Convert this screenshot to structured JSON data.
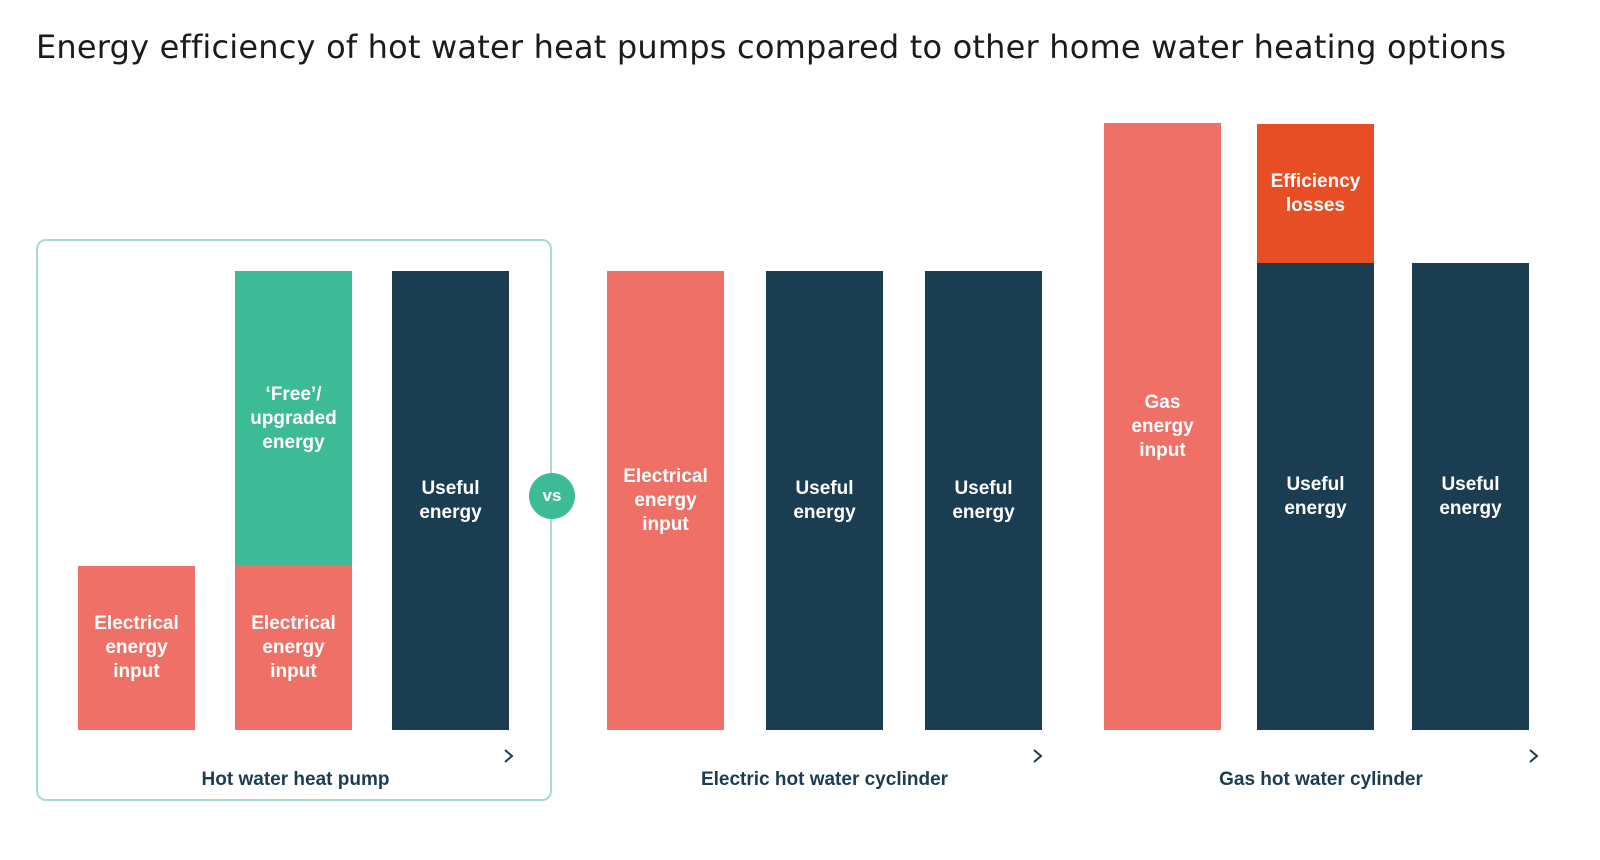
{
  "title": "Energy efficiency of hot water heat pumps compared to other home water heating options",
  "vs_label": "vs",
  "colors": {
    "electrical": "#ef7066",
    "free": "#3dba96",
    "useful": "#1a3d52",
    "losses": "#e84e25",
    "frame": "#a9dcca",
    "axis_start": "#ef7066",
    "axis_end": "#1a3d52"
  },
  "groups": [
    {
      "label": "Hot water heat pump",
      "columns": [
        {
          "segments": [
            {
              "kind": "electrical",
              "label": "Electrical\nenergy\ninput",
              "value": 1
            }
          ]
        },
        {
          "segments": [
            {
              "kind": "electrical",
              "label": "Electrical\nenergy\ninput",
              "value": 1
            },
            {
              "kind": "free",
              "label": "‘Free’/\nupgraded\nenergy",
              "value": 1.8
            }
          ]
        },
        {
          "segments": [
            {
              "kind": "useful",
              "label": "Useful\nenergy",
              "value": 2.8
            }
          ]
        }
      ]
    },
    {
      "label": "Electric hot water cyclinder",
      "columns": [
        {
          "segments": [
            {
              "kind": "electrical",
              "label": "Electrical\nenergy\ninput",
              "value": 2.8
            }
          ]
        },
        {
          "segments": [
            {
              "kind": "useful",
              "label": "Useful\nenergy",
              "value": 2.8
            }
          ]
        },
        {
          "segments": [
            {
              "kind": "useful",
              "label": "Useful\nenergy",
              "value": 2.8
            }
          ]
        }
      ]
    },
    {
      "label": "Gas hot water cylinder",
      "columns": [
        {
          "segments": [
            {
              "kind": "electrical",
              "label": "Gas\nenergy\ninput",
              "value": 3.7
            }
          ]
        },
        {
          "segments": [
            {
              "kind": "useful",
              "label": "Useful\nenergy",
              "value": 2.85
            },
            {
              "kind": "losses",
              "label": "Efficiency\nlosses",
              "value": 0.85
            }
          ]
        },
        {
          "segments": [
            {
              "kind": "useful",
              "label": "Useful\nenergy",
              "value": 2.85
            }
          ]
        }
      ]
    }
  ]
}
